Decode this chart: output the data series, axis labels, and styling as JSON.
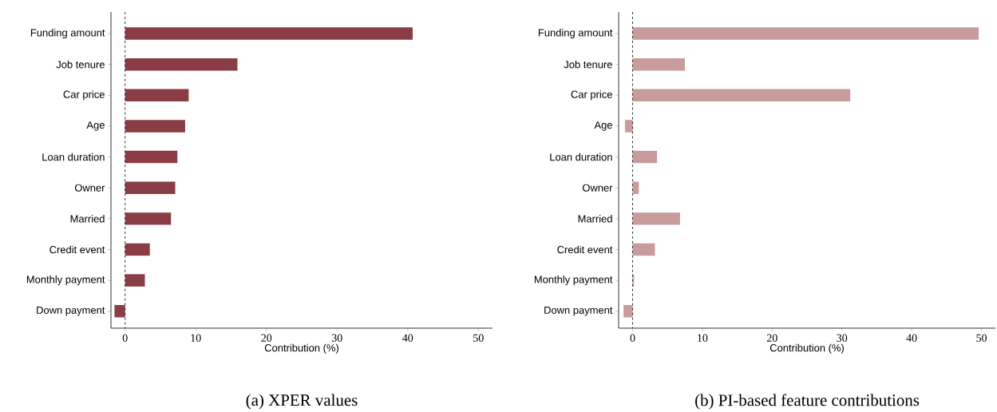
{
  "chart_data": [
    {
      "type": "bar",
      "orientation": "horizontal",
      "title": "(a) XPER values",
      "xlabel": "Contribution (%)",
      "categories": [
        "Funding amount",
        "Job tenure",
        "Car price",
        "Age",
        "Loan duration",
        "Owner",
        "Married",
        "Credit event",
        "Monthly payment",
        "Down payment"
      ],
      "values": [
        40.7,
        15.9,
        9.0,
        8.5,
        7.4,
        7.1,
        6.5,
        3.5,
        2.8,
        -1.5
      ],
      "color": "#8b3d46",
      "xlim": [
        -2,
        52
      ],
      "xticks": [
        0,
        10,
        20,
        30,
        40,
        50
      ],
      "grid": false,
      "ref_lines": [
        {
          "axis": "x",
          "value": 0,
          "color": "#000000",
          "line_style": "dashed"
        }
      ]
    },
    {
      "type": "bar",
      "orientation": "horizontal",
      "title": "(b) PI-based feature contributions",
      "xlabel": "Contribution (%)",
      "categories": [
        "Funding amount",
        "Job tenure",
        "Car price",
        "Age",
        "Loan duration",
        "Owner",
        "Married",
        "Credit event",
        "Monthly payment",
        "Down payment"
      ],
      "values": [
        49.6,
        7.5,
        31.2,
        -1.1,
        3.5,
        0.9,
        6.8,
        3.2,
        0.2,
        -1.3
      ],
      "color": "#c89b9c",
      "xlim": [
        -2,
        52
      ],
      "xticks": [
        0,
        10,
        20,
        30,
        40,
        50
      ],
      "grid": false,
      "ref_lines": [
        {
          "axis": "x",
          "value": 0,
          "color": "#000000",
          "line_style": "dashed"
        }
      ]
    }
  ]
}
